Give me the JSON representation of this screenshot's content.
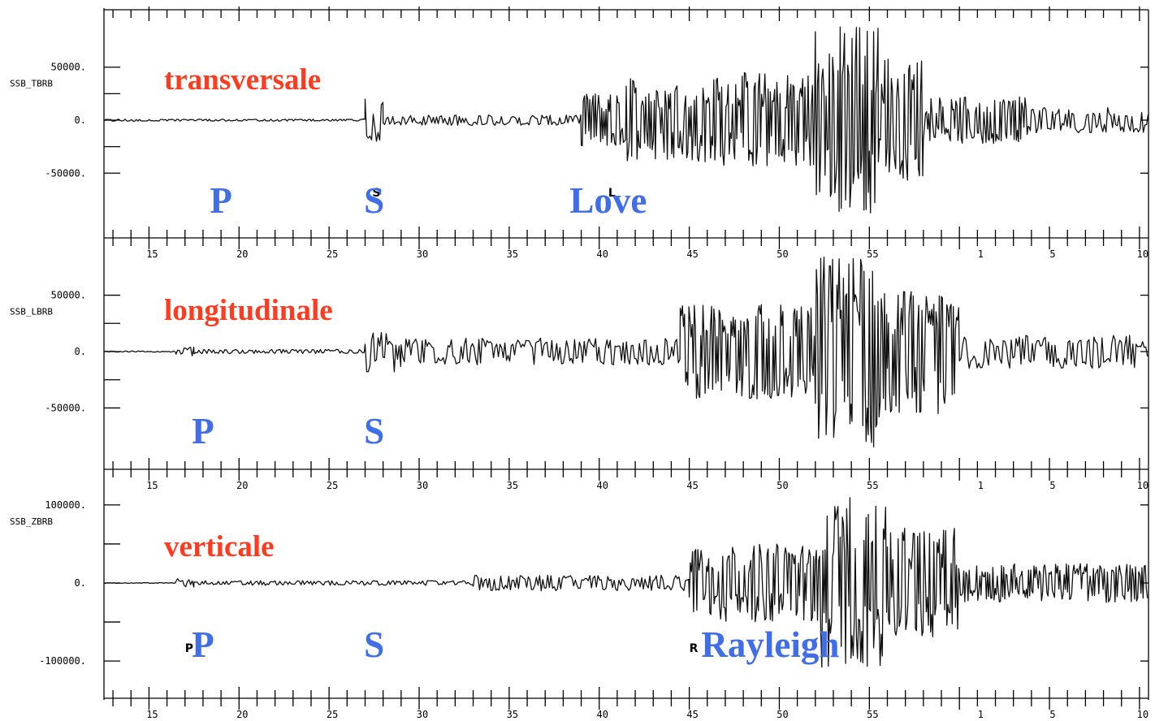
{
  "chart_data": {
    "type": "line",
    "title": "",
    "colors": {
      "component_label": "#ff3b1f",
      "phase_label": "#3f6ee8",
      "trace": "#111111"
    },
    "x_axis": {
      "ticks": [
        "15",
        "20",
        "25",
        "30",
        "35",
        "40",
        "45",
        "50",
        "55",
        "1",
        "5",
        "10"
      ],
      "range_minutes": [
        12.5,
        70.5
      ]
    },
    "panels": [
      {
        "channel": "SSB_TBRB",
        "component": "transversale",
        "y_ticks": [
          "50000.",
          "0.",
          "-50000."
        ],
        "y_tick_values": [
          50000,
          0,
          -50000
        ],
        "ylim": [
          -90000,
          95000
        ],
        "phases": [
          {
            "label": "P",
            "minute": 19.0
          },
          {
            "label": "S",
            "minute": 27.5
          },
          {
            "label": "Love",
            "minute": 40.5
          }
        ],
        "markers": [
          {
            "text": "S",
            "minute": 27.4
          },
          {
            "text": "L",
            "minute": 40.5
          }
        ],
        "segments": [
          {
            "x": [
              12.5,
              27.0
            ],
            "amp": 1000
          },
          {
            "x": [
              27.0,
              28.0
            ],
            "amp": 20000
          },
          {
            "x": [
              28.0,
              39.0
            ],
            "amp": 5000
          },
          {
            "x": [
              39.0,
              41.5
            ],
            "amp": 25000
          },
          {
            "x": [
              41.5,
              46.5
            ],
            "amp": 40000
          },
          {
            "x": [
              46.5,
              52.0
            ],
            "amp": 45000
          },
          {
            "x": [
              52.0,
              55.5
            ],
            "amp": 90000
          },
          {
            "x": [
              55.5,
              58.0
            ],
            "amp": 60000
          },
          {
            "x": [
              58.0,
              64.0
            ],
            "amp": 22000
          },
          {
            "x": [
              64.0,
              70.5
            ],
            "amp": 12000
          }
        ]
      },
      {
        "channel": "SSB_LBRB",
        "component": "longitudinale",
        "y_ticks": [
          "50000.",
          "0.",
          "-50000."
        ],
        "y_tick_values": [
          50000,
          0,
          -50000
        ],
        "ylim": [
          -90000,
          85000
        ],
        "phases": [
          {
            "label": "P",
            "minute": 18.0
          },
          {
            "label": "S",
            "minute": 27.5
          }
        ],
        "markers": [],
        "segments": [
          {
            "x": [
              12.5,
              16.5
            ],
            "amp": 500
          },
          {
            "x": [
              16.5,
              17.5
            ],
            "amp": 4000
          },
          {
            "x": [
              17.5,
              27.0
            ],
            "amp": 2000
          },
          {
            "x": [
              27.0,
              29.0
            ],
            "amp": 18000
          },
          {
            "x": [
              29.0,
              44.5
            ],
            "amp": 12000
          },
          {
            "x": [
              44.5,
              52.0
            ],
            "amp": 42000
          },
          {
            "x": [
              52.0,
              56.0
            ],
            "amp": 85000
          },
          {
            "x": [
              56.0,
              60.0
            ],
            "amp": 55000
          },
          {
            "x": [
              60.0,
              70.5
            ],
            "amp": 15000
          }
        ]
      },
      {
        "channel": "SSB_ZBRB",
        "component": "verticale",
        "y_ticks": [
          "100000.",
          "0.",
          "-100000."
        ],
        "y_tick_values": [
          100000,
          0,
          -100000
        ],
        "ylim": [
          -130000,
          130000
        ],
        "phases": [
          {
            "label": "P",
            "minute": 18.0
          },
          {
            "label": "S",
            "minute": 27.5
          },
          {
            "label": "Rayleigh",
            "minute": 49.5
          }
        ],
        "markers": [
          {
            "text": "P",
            "minute": 17.0
          },
          {
            "text": "R",
            "minute": 45.0
          }
        ],
        "segments": [
          {
            "x": [
              12.5,
              16.5
            ],
            "amp": 500
          },
          {
            "x": [
              16.5,
              17.5
            ],
            "amp": 6000
          },
          {
            "x": [
              17.5,
              33.0
            ],
            "amp": 3000
          },
          {
            "x": [
              33.0,
              45.0
            ],
            "amp": 10000
          },
          {
            "x": [
              45.0,
              52.0
            ],
            "amp": 50000
          },
          {
            "x": [
              52.0,
              56.0
            ],
            "amp": 110000
          },
          {
            "x": [
              56.0,
              60.0
            ],
            "amp": 70000
          },
          {
            "x": [
              60.0,
              70.5
            ],
            "amp": 25000
          }
        ]
      }
    ]
  }
}
